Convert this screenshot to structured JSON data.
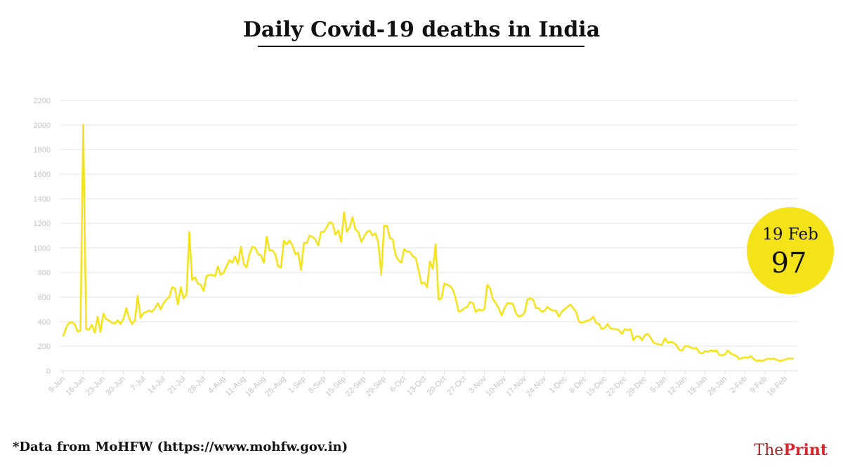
{
  "chart_data": {
    "type": "line",
    "title": "Daily Covid-19 deaths in India",
    "note": "*Data from MoHFW (https://www.mohfw.gov.in)",
    "callout": {
      "label": "19 Feb",
      "value": 97
    },
    "color": "#f5e31a",
    "grid": true,
    "ylim": [
      0,
      2200
    ],
    "yticks": [
      0,
      200,
      400,
      600,
      800,
      1000,
      1200,
      1400,
      1600,
      1800,
      2000,
      2200
    ],
    "categories": [
      "9-Jun",
      null,
      null,
      null,
      null,
      null,
      null,
      "16-Jun",
      null,
      null,
      null,
      null,
      null,
      null,
      "23-Jun",
      null,
      null,
      null,
      null,
      null,
      null,
      "30-Jun",
      null,
      null,
      null,
      null,
      null,
      null,
      "7-Jul",
      null,
      null,
      null,
      null,
      null,
      null,
      "14-Jul",
      null,
      null,
      null,
      null,
      null,
      null,
      "21-Jul",
      null,
      null,
      null,
      null,
      null,
      null,
      "28-Jul",
      null,
      null,
      null,
      null,
      null,
      null,
      "4-Aug",
      null,
      null,
      null,
      null,
      null,
      null,
      "11-Aug",
      null,
      null,
      null,
      null,
      null,
      null,
      "18-Aug",
      null,
      null,
      null,
      null,
      null,
      null,
      "25-Aug",
      null,
      null,
      null,
      null,
      null,
      null,
      "1-Sep",
      null,
      null,
      null,
      null,
      null,
      null,
      "8-Sep",
      null,
      null,
      null,
      null,
      null,
      null,
      "15-Sep",
      null,
      null,
      null,
      null,
      null,
      null,
      "22-Sep",
      null,
      null,
      null,
      null,
      null,
      null,
      "29-Sep",
      null,
      null,
      null,
      null,
      null,
      null,
      "6-Oct",
      null,
      null,
      null,
      null,
      null,
      null,
      "13-Oct",
      null,
      null,
      null,
      null,
      null,
      null,
      "20-Oct",
      null,
      null,
      null,
      null,
      null,
      null,
      "27-Oct",
      null,
      null,
      null,
      null,
      null,
      null,
      "3-Nov",
      null,
      null,
      null,
      null,
      null,
      null,
      "10-Nov",
      null,
      null,
      null,
      null,
      null,
      null,
      "17-Nov",
      null,
      null,
      null,
      null,
      null,
      null,
      "24-Nov",
      null,
      null,
      null,
      null,
      null,
      null,
      "1-Dec",
      null,
      null,
      null,
      null,
      null,
      null,
      "8-Dec",
      null,
      null,
      null,
      null,
      null,
      null,
      "15-Dec",
      null,
      null,
      null,
      null,
      null,
      null,
      "22-Dec",
      null,
      null,
      null,
      null,
      null,
      null,
      "29-Dec",
      null,
      null,
      null,
      null,
      null,
      null,
      "5-Jan",
      null,
      null,
      null,
      null,
      null,
      null,
      "12-Jan",
      null,
      null,
      null,
      null,
      null,
      null,
      "19-Jan",
      null,
      null,
      null,
      null,
      null,
      null,
      "26-Jan",
      null,
      null,
      null,
      null,
      null,
      null,
      "2-Feb",
      null,
      null,
      null,
      null,
      null,
      null,
      "9-Feb",
      null,
      null,
      null,
      null,
      null,
      null,
      "16-Feb",
      null,
      null,
      null
    ],
    "values": [
      280,
      350,
      390,
      395,
      380,
      320,
      325,
      2003,
      340,
      335,
      375,
      310,
      440,
      315,
      465,
      420,
      410,
      390,
      385,
      410,
      380,
      420,
      510,
      430,
      380,
      410,
      610,
      430,
      470,
      480,
      490,
      480,
      510,
      550,
      500,
      550,
      580,
      600,
      680,
      670,
      540,
      680,
      590,
      620,
      1130,
      740,
      760,
      710,
      700,
      650,
      770,
      780,
      780,
      770,
      850,
      780,
      800,
      850,
      900,
      880,
      930,
      870,
      1010,
      870,
      840,
      950,
      1010,
      1000,
      950,
      940,
      880,
      1090,
      980,
      980,
      950,
      850,
      840,
      1060,
      1030,
      1060,
      1020,
      950,
      960,
      820,
      1040,
      1040,
      1100,
      1090,
      1070,
      1020,
      1130,
      1130,
      1170,
      1210,
      1200,
      1110,
      1140,
      1050,
      1290,
      1130,
      1170,
      1250,
      1150,
      1130,
      1050,
      1090,
      1130,
      1140,
      1100,
      1120,
      1040,
      780,
      1180,
      1180,
      1080,
      1070,
      940,
      900,
      880,
      990,
      970,
      970,
      930,
      920,
      820,
      710,
      720,
      680,
      890,
      830,
      1030,
      580,
      590,
      710,
      700,
      690,
      660,
      590,
      480,
      490,
      510,
      520,
      560,
      550,
      480,
      500,
      490,
      500,
      700,
      670,
      580,
      550,
      510,
      450,
      510,
      550,
      550,
      540,
      470,
      440,
      450,
      470,
      580,
      590,
      580,
      510,
      510,
      480,
      490,
      520,
      500,
      490,
      490,
      440,
      480,
      500,
      520,
      540,
      510,
      480,
      400,
      390,
      400,
      410,
      415,
      440,
      390,
      380,
      340,
      350,
      380,
      345,
      340,
      340,
      330,
      300,
      340,
      330,
      340,
      250,
      280,
      280,
      250,
      290,
      300,
      270,
      230,
      220,
      215,
      210,
      265,
      230,
      235,
      230,
      210,
      170,
      165,
      200,
      200,
      190,
      180,
      185,
      150,
      140,
      160,
      155,
      165,
      160,
      165,
      130,
      125,
      135,
      165,
      140,
      130,
      120,
      95,
      105,
      110,
      105,
      120,
      95,
      80,
      85,
      80,
      90,
      100,
      95,
      100,
      90,
      80,
      85,
      90,
      100,
      100,
      97
    ]
  },
  "brand": {
    "first": "The",
    "second": "Print"
  }
}
